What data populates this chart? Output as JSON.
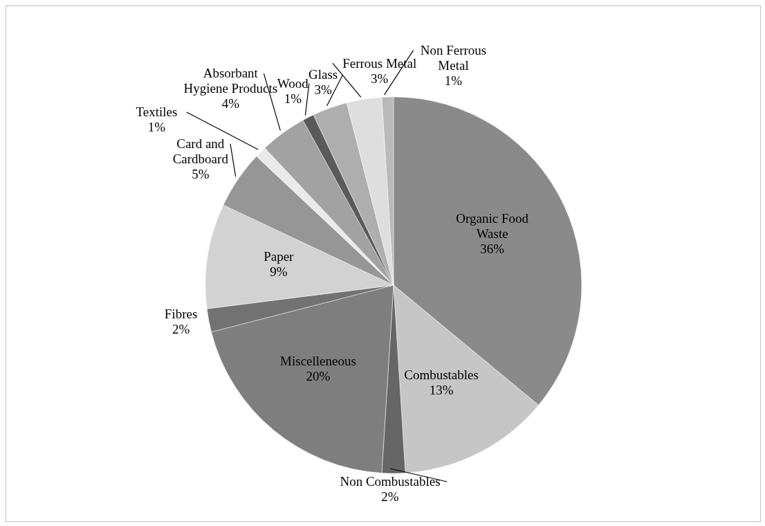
{
  "chart_data": {
    "type": "pie",
    "categories": [
      "Organic Food Waste",
      "Combustables",
      "Non Combustables",
      "Miscelleneous",
      "Fibres",
      "Paper",
      "Card and Cardboard",
      "Textiles",
      "Absorbant Hygiene Products",
      "Wood",
      "Glass",
      "Ferrous Metal",
      "Non Ferrous Metal"
    ],
    "values": [
      36,
      13,
      2,
      20,
      2,
      9,
      5,
      1,
      4,
      1,
      3,
      3,
      1
    ],
    "value_labels": [
      "36%",
      "13%",
      "2%",
      "20%",
      "2%",
      "9%",
      "5%",
      "1%",
      "4%",
      "1%",
      "3%",
      "3%",
      "1%"
    ],
    "colors": [
      "#8a8a8a",
      "#c6c6c6",
      "#666666",
      "#7e7e7e",
      "#727272",
      "#d2d2d2",
      "#969696",
      "#eaeaea",
      "#a2a2a2",
      "#5a5a5a",
      "#aeaeae",
      "#dedede",
      "#bababa"
    ],
    "legend": false
  }
}
